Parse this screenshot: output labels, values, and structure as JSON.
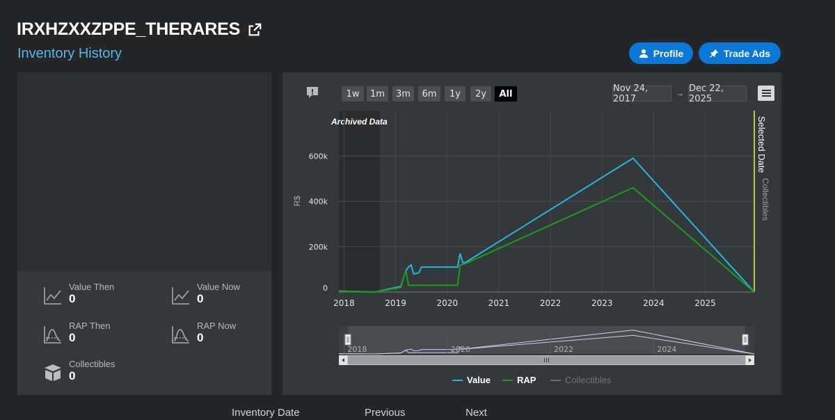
{
  "header": {
    "username": "IRXHZXXZPPE_THERARES",
    "subtitle": "Inventory History",
    "profile_label": "Profile",
    "trade_ads_label": "Trade Ads"
  },
  "stats": {
    "value_then_label": "Value Then",
    "value_then": "0",
    "value_now_label": "Value Now",
    "value_now": "0",
    "rap_then_label": "RAP Then",
    "rap_then": "0",
    "rap_now_label": "RAP Now",
    "rap_now": "0",
    "collectibles_label": "Collectibles",
    "collectibles": "0"
  },
  "ranges": [
    "1w",
    "1m",
    "3m",
    "6m",
    "1y",
    "2y",
    "All"
  ],
  "active_range": "All",
  "date_from": "Nov 24, 2017",
  "date_arrow": "→",
  "date_to": "Dec 22, 2025",
  "archived_label": "Archived Data",
  "selected_date_label": "Selected Date",
  "collectibles_axis_label": "Collectibles",
  "colors": {
    "value": "#25b7e0",
    "rap": "#1a9e1a",
    "collectibles": "#6a6d70",
    "accent": "#0b77d6",
    "selected": "#e6f542"
  },
  "chart_data": {
    "type": "line",
    "ylabel": "R$",
    "y_ticks": [
      "600k",
      "400k",
      "200k",
      "0"
    ],
    "x_ticks": [
      "2018",
      "2019",
      "2020",
      "2021",
      "2022",
      "2023",
      "2024",
      "2025"
    ],
    "navigator_ticks": [
      "2018",
      "2020",
      "2022",
      "2024"
    ],
    "ylim": [
      0,
      800000
    ],
    "series": [
      {
        "name": "Value",
        "points": [
          [
            2017.9,
            5000
          ],
          [
            2018.2,
            2000
          ],
          [
            2018.6,
            0
          ],
          [
            2019.1,
            25000
          ],
          [
            2019.2,
            95000
          ],
          [
            2019.25,
            110000
          ],
          [
            2019.3,
            120000
          ],
          [
            2019.35,
            80000
          ],
          [
            2019.45,
            85000
          ],
          [
            2019.5,
            110000
          ],
          [
            2020.2,
            110000
          ],
          [
            2020.25,
            170000
          ],
          [
            2020.3,
            130000
          ],
          [
            2020.35,
            130000
          ],
          [
            2023.6,
            590000
          ],
          [
            2025.95,
            0
          ]
        ]
      },
      {
        "name": "RAP",
        "points": [
          [
            2017.9,
            5000
          ],
          [
            2018.2,
            1000
          ],
          [
            2018.6,
            0
          ],
          [
            2019.1,
            20000
          ],
          [
            2019.15,
            60000
          ],
          [
            2019.2,
            95000
          ],
          [
            2019.25,
            30000
          ],
          [
            2020.2,
            30000
          ],
          [
            2020.25,
            120000
          ],
          [
            2020.35,
            125000
          ],
          [
            2023.6,
            460000
          ],
          [
            2025.95,
            0
          ]
        ]
      },
      {
        "name": "Collectibles",
        "points": []
      }
    ],
    "legend": [
      "Value",
      "RAP",
      "Collectibles"
    ]
  },
  "footer": {
    "inventory_date": "Inventory Date",
    "previous": "Previous",
    "next": "Next"
  }
}
